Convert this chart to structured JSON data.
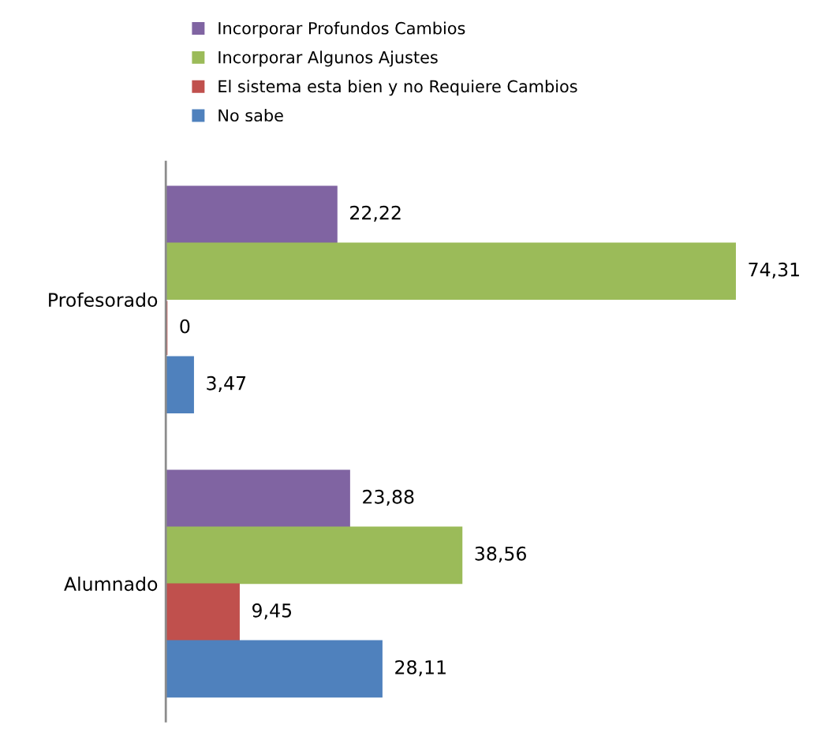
{
  "chart_data": {
    "type": "bar",
    "orientation": "horizontal",
    "categories": [
      "Profesorado",
      "Alumnado"
    ],
    "series": [
      {
        "name": "Incorporar Profundos Cambios",
        "color": "#8064a2",
        "values": [
          22.22,
          23.88
        ],
        "value_labels": [
          "22,22",
          "23,88"
        ]
      },
      {
        "name": "Incorporar Algunos Ajustes",
        "color": "#9bbb59",
        "values": [
          74.31,
          38.56
        ],
        "value_labels": [
          "74,31",
          "38,56"
        ]
      },
      {
        "name": "El sistema esta bien y no Requiere Cambios",
        "color": "#c0504d",
        "values": [
          0,
          9.45
        ],
        "value_labels": [
          "0",
          "9,45"
        ]
      },
      {
        "name": "No sabe",
        "color": "#4f81bd",
        "values": [
          3.47,
          28.11
        ],
        "value_labels": [
          "3,47",
          "28,11"
        ]
      }
    ],
    "legend": "top",
    "grid": false,
    "tick_labels": "y"
  }
}
